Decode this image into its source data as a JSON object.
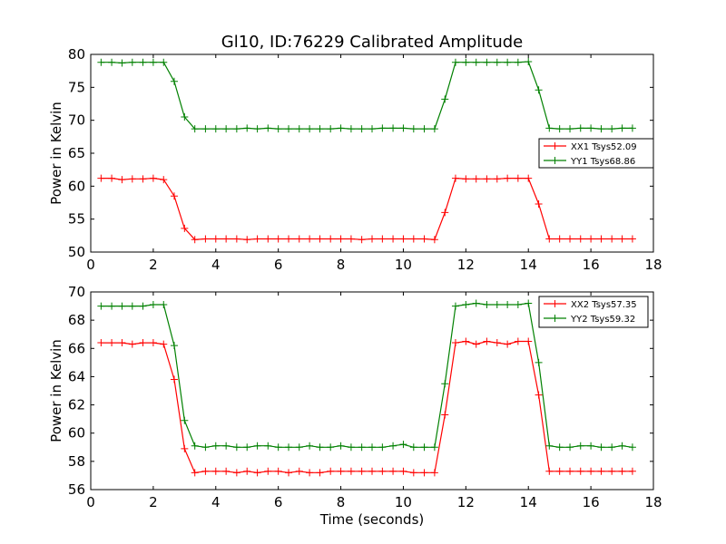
{
  "figure": {
    "title": "Gl10, ID:76229 Calibrated Amplitude"
  },
  "chart_data": [
    {
      "type": "line",
      "title": "Gl10, ID:76229 Calibrated Amplitude",
      "xlabel": "",
      "ylabel": "Power in Kelvin",
      "xlim": [
        0,
        18
      ],
      "ylim": [
        50,
        80
      ],
      "xticks": [
        0,
        2,
        4,
        6,
        8,
        10,
        12,
        14,
        16,
        18
      ],
      "yticks": [
        50,
        55,
        60,
        65,
        70,
        75,
        80
      ],
      "grid": false,
      "legend_position": "center-right",
      "x": [
        0.33,
        0.67,
        1.0,
        1.33,
        1.67,
        2.0,
        2.33,
        2.67,
        3.0,
        3.33,
        3.67,
        4.0,
        4.33,
        4.67,
        5.0,
        5.33,
        5.67,
        6.0,
        6.33,
        6.67,
        7.0,
        7.33,
        7.67,
        8.0,
        8.33,
        8.67,
        9.0,
        9.33,
        9.67,
        10.0,
        10.33,
        10.67,
        11.0,
        11.33,
        11.67,
        12.0,
        12.33,
        12.67,
        13.0,
        13.33,
        13.67,
        14.0,
        14.33,
        14.67,
        15.0,
        15.33,
        15.67,
        16.0,
        16.33,
        16.67,
        17.0,
        17.33
      ],
      "series": [
        {
          "name": "XX1 Tsys52.09",
          "color": "#ff0000",
          "values": [
            61.2,
            61.2,
            61.0,
            61.1,
            61.1,
            61.2,
            61.0,
            58.5,
            53.6,
            51.9,
            52.0,
            52.0,
            52.0,
            52.0,
            51.9,
            52.0,
            52.0,
            52.0,
            52.0,
            52.0,
            52.0,
            52.0,
            52.0,
            52.0,
            52.0,
            51.9,
            52.0,
            52.0,
            52.0,
            52.0,
            52.0,
            52.0,
            51.9,
            56.0,
            61.2,
            61.1,
            61.1,
            61.1,
            61.1,
            61.2,
            61.2,
            61.2,
            57.3,
            52.0,
            52.0,
            52.0,
            52.0,
            52.0,
            52.0,
            52.0,
            52.0,
            52.0
          ]
        },
        {
          "name": "YY1 Tsys68.86",
          "color": "#008000",
          "values": [
            78.8,
            78.8,
            78.7,
            78.8,
            78.8,
            78.8,
            78.8,
            75.9,
            70.5,
            68.7,
            68.7,
            68.7,
            68.7,
            68.7,
            68.8,
            68.7,
            68.8,
            68.7,
            68.7,
            68.7,
            68.7,
            68.7,
            68.7,
            68.8,
            68.7,
            68.7,
            68.7,
            68.8,
            68.8,
            68.8,
            68.7,
            68.7,
            68.7,
            73.2,
            78.8,
            78.8,
            78.8,
            78.8,
            78.8,
            78.8,
            78.8,
            78.9,
            74.6,
            68.8,
            68.7,
            68.7,
            68.8,
            68.8,
            68.7,
            68.7,
            68.8,
            68.8
          ]
        }
      ]
    },
    {
      "type": "line",
      "title": "",
      "xlabel": "Time (seconds)",
      "ylabel": "Power in Kelvin",
      "xlim": [
        0,
        18
      ],
      "ylim": [
        56,
        70
      ],
      "xticks": [
        0,
        2,
        4,
        6,
        8,
        10,
        12,
        14,
        16,
        18
      ],
      "yticks": [
        56,
        58,
        60,
        62,
        64,
        66,
        68,
        70
      ],
      "grid": false,
      "legend_position": "top-right",
      "x": [
        0.33,
        0.67,
        1.0,
        1.33,
        1.67,
        2.0,
        2.33,
        2.67,
        3.0,
        3.33,
        3.67,
        4.0,
        4.33,
        4.67,
        5.0,
        5.33,
        5.67,
        6.0,
        6.33,
        6.67,
        7.0,
        7.33,
        7.67,
        8.0,
        8.33,
        8.67,
        9.0,
        9.33,
        9.67,
        10.0,
        10.33,
        10.67,
        11.0,
        11.33,
        11.67,
        12.0,
        12.33,
        12.67,
        13.0,
        13.33,
        13.67,
        14.0,
        14.33,
        14.67,
        15.0,
        15.33,
        15.67,
        16.0,
        16.33,
        16.67,
        17.0,
        17.33
      ],
      "series": [
        {
          "name": "XX2 Tsys57.35",
          "color": "#ff0000",
          "values": [
            66.4,
            66.4,
            66.4,
            66.3,
            66.4,
            66.4,
            66.3,
            63.8,
            58.9,
            57.2,
            57.3,
            57.3,
            57.3,
            57.2,
            57.3,
            57.2,
            57.3,
            57.3,
            57.2,
            57.3,
            57.2,
            57.2,
            57.3,
            57.3,
            57.3,
            57.3,
            57.3,
            57.3,
            57.3,
            57.3,
            57.2,
            57.2,
            57.2,
            61.3,
            66.4,
            66.5,
            66.3,
            66.5,
            66.4,
            66.3,
            66.5,
            66.5,
            62.7,
            57.3,
            57.3,
            57.3,
            57.3,
            57.3,
            57.3,
            57.3,
            57.3,
            57.3
          ]
        },
        {
          "name": "YY2 Tsys59.32",
          "color": "#008000",
          "values": [
            69.0,
            69.0,
            69.0,
            69.0,
            69.0,
            69.1,
            69.1,
            66.2,
            60.9,
            59.1,
            59.0,
            59.1,
            59.1,
            59.0,
            59.0,
            59.1,
            59.1,
            59.0,
            59.0,
            59.0,
            59.1,
            59.0,
            59.0,
            59.1,
            59.0,
            59.0,
            59.0,
            59.0,
            59.1,
            59.2,
            59.0,
            59.0,
            59.0,
            63.5,
            69.0,
            69.1,
            69.2,
            69.1,
            69.1,
            69.1,
            69.1,
            69.2,
            65.0,
            59.1,
            59.0,
            59.0,
            59.1,
            59.1,
            59.0,
            59.0,
            59.1,
            59.0
          ]
        }
      ]
    }
  ]
}
